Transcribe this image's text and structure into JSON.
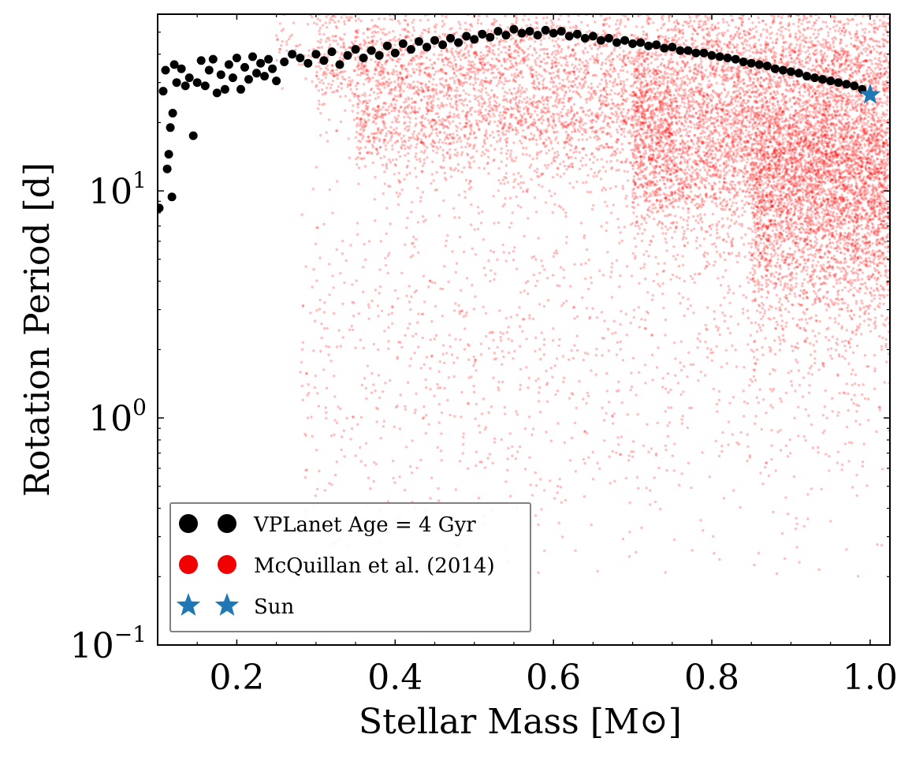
{
  "chart_data": {
    "type": "scatter",
    "xlabel": "Stellar Mass [M⊙]",
    "ylabel": "Rotation Period [d]",
    "xlim": [
      0.1,
      1.025
    ],
    "ylim": [
      0.1,
      60
    ],
    "yscale": "log",
    "x_ticks": [
      0.2,
      0.4,
      0.6,
      0.8,
      1.0
    ],
    "x_tick_labels": [
      "0.2",
      "0.4",
      "0.6",
      "0.8",
      "1.0"
    ],
    "y_ticks": [
      0.1,
      1,
      10
    ],
    "y_tick_labels": [
      {
        "base": "10",
        "exp": "−1"
      },
      {
        "base": "10",
        "exp": "0"
      },
      {
        "base": "10",
        "exp": "1"
      }
    ],
    "grid": false,
    "legend_position": "lower-left",
    "colors": {
      "vplanet": "#000000",
      "mcquillan": "#ff0000",
      "sun": "#1f77b4"
    },
    "series": [
      {
        "name": "VPLanet Age = 4 Gyr",
        "marker": "circle",
        "color": "#000000",
        "points": [
          [
            0.102,
            8.4
          ],
          [
            0.107,
            27.5
          ],
          [
            0.11,
            34.0
          ],
          [
            0.112,
            12.5
          ],
          [
            0.114,
            14.5
          ],
          [
            0.116,
            19.0
          ],
          [
            0.118,
            9.4
          ],
          [
            0.119,
            22.0
          ],
          [
            0.121,
            36.0
          ],
          [
            0.124,
            30.0
          ],
          [
            0.13,
            34.5
          ],
          [
            0.135,
            29.0
          ],
          [
            0.14,
            31.5
          ],
          [
            0.145,
            17.5
          ],
          [
            0.15,
            30.0
          ],
          [
            0.155,
            37.5
          ],
          [
            0.16,
            29.0
          ],
          [
            0.165,
            34.0
          ],
          [
            0.17,
            38.0
          ],
          [
            0.175,
            27.0
          ],
          [
            0.18,
            32.5
          ],
          [
            0.185,
            28.0
          ],
          [
            0.19,
            36.0
          ],
          [
            0.195,
            31.5
          ],
          [
            0.2,
            38.5
          ],
          [
            0.205,
            28.0
          ],
          [
            0.21,
            35.0
          ],
          [
            0.215,
            31.0
          ],
          [
            0.22,
            39.0
          ],
          [
            0.225,
            33.0
          ],
          [
            0.23,
            36.5
          ],
          [
            0.235,
            32.0
          ],
          [
            0.24,
            38.0
          ],
          [
            0.245,
            34.5
          ],
          [
            0.25,
            30.5
          ],
          [
            0.26,
            37.0
          ],
          [
            0.27,
            40.0
          ],
          [
            0.28,
            38.5
          ],
          [
            0.29,
            36.5
          ],
          [
            0.3,
            40.0
          ],
          [
            0.31,
            37.5
          ],
          [
            0.32,
            41.0
          ],
          [
            0.33,
            36.0
          ],
          [
            0.34,
            39.5
          ],
          [
            0.35,
            42.0
          ],
          [
            0.36,
            38.5
          ],
          [
            0.37,
            41.5
          ],
          [
            0.38,
            39.5
          ],
          [
            0.39,
            43.5
          ],
          [
            0.4,
            40.5
          ],
          [
            0.41,
            44.5
          ],
          [
            0.42,
            42.0
          ],
          [
            0.43,
            45.5
          ],
          [
            0.44,
            43.0
          ],
          [
            0.45,
            46.0
          ],
          [
            0.46,
            44.0
          ],
          [
            0.47,
            47.0
          ],
          [
            0.48,
            45.0
          ],
          [
            0.49,
            48.0
          ],
          [
            0.5,
            46.5
          ],
          [
            0.51,
            49.0
          ],
          [
            0.52,
            47.5
          ],
          [
            0.53,
            50.5
          ],
          [
            0.54,
            48.5
          ],
          [
            0.55,
            51.5
          ],
          [
            0.56,
            49.5
          ],
          [
            0.57,
            50.5
          ],
          [
            0.58,
            48.5
          ],
          [
            0.59,
            51.0
          ],
          [
            0.6,
            49.5
          ],
          [
            0.61,
            50.5
          ],
          [
            0.62,
            48.0
          ],
          [
            0.63,
            49.0
          ],
          [
            0.64,
            47.0
          ],
          [
            0.65,
            48.0
          ],
          [
            0.66,
            46.0
          ],
          [
            0.67,
            47.0
          ],
          [
            0.68,
            45.0
          ],
          [
            0.69,
            46.0
          ],
          [
            0.7,
            44.5
          ],
          [
            0.71,
            45.0
          ],
          [
            0.72,
            43.5
          ],
          [
            0.73,
            44.0
          ],
          [
            0.74,
            42.5
          ],
          [
            0.75,
            43.0
          ],
          [
            0.76,
            41.5
          ],
          [
            0.77,
            41.5
          ],
          [
            0.78,
            40.5
          ],
          [
            0.79,
            40.5
          ],
          [
            0.8,
            39.5
          ],
          [
            0.81,
            39.0
          ],
          [
            0.82,
            38.5
          ],
          [
            0.83,
            38.0
          ],
          [
            0.84,
            37.0
          ],
          [
            0.85,
            36.5
          ],
          [
            0.86,
            36.0
          ],
          [
            0.87,
            35.5
          ],
          [
            0.88,
            34.5
          ],
          [
            0.89,
            34.0
          ],
          [
            0.9,
            33.5
          ],
          [
            0.91,
            33.0
          ],
          [
            0.92,
            32.0
          ],
          [
            0.93,
            31.5
          ],
          [
            0.94,
            31.0
          ],
          [
            0.95,
            30.5
          ],
          [
            0.96,
            30.0
          ],
          [
            0.97,
            29.5
          ],
          [
            0.98,
            29.0
          ],
          [
            0.99,
            28.0
          ]
        ]
      },
      {
        "name": "McQuillan et al. (2014)",
        "marker": "circle",
        "color": "#ff0000",
        "opacity": 0.25,
        "clusters": [
          {
            "x_range": [
              0.3,
              1.025
            ],
            "log10_p_center": 1.55,
            "log10_p_spread": 0.12,
            "count": 2200
          },
          {
            "x_range": [
              0.35,
              0.75
            ],
            "log10_p_center": 1.3,
            "log10_p_spread": 0.14,
            "count": 1800
          },
          {
            "x_range": [
              0.7,
              1.025
            ],
            "log10_p_center": 1.2,
            "log10_p_spread": 0.22,
            "count": 4200
          },
          {
            "x_range": [
              0.85,
              1.025
            ],
            "log10_p_center": 0.95,
            "log10_p_spread": 0.28,
            "count": 2600
          },
          {
            "x_range": [
              0.28,
              1.025
            ],
            "log10_p_center": 0.3,
            "log10_p_spread": 0.45,
            "count": 1500
          },
          {
            "x_range": [
              0.25,
              1.025
            ],
            "log10_p_center": 1.65,
            "log10_p_spread": 0.08,
            "count": 700
          }
        ]
      },
      {
        "name": "Sun",
        "marker": "star",
        "color": "#1f77b4",
        "points": [
          [
            1.0,
            26.5
          ]
        ]
      }
    ]
  }
}
